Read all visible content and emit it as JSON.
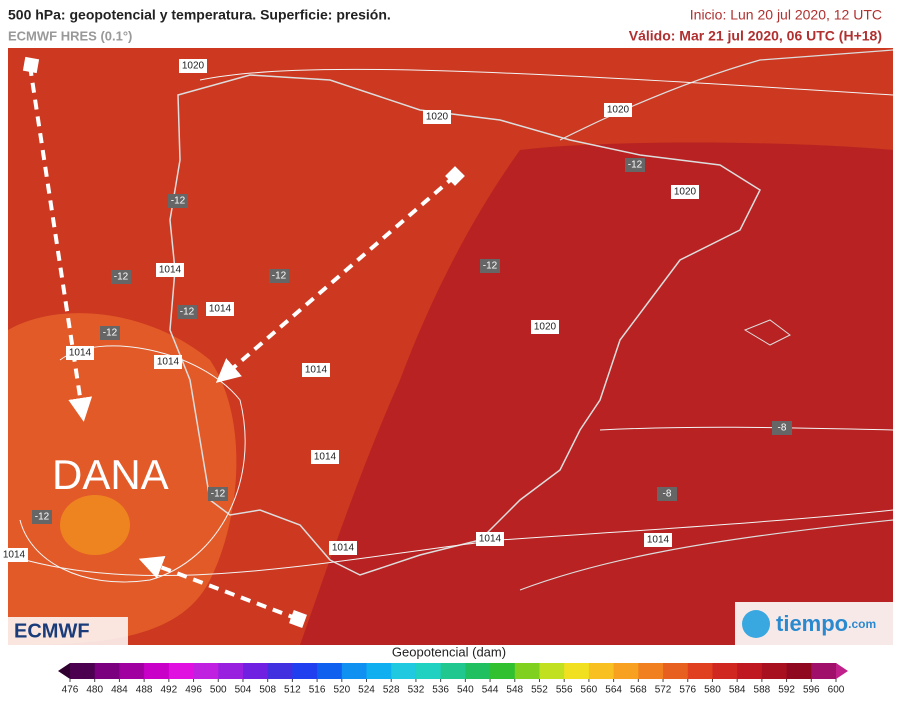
{
  "header": {
    "title": "500 hPa: geopotencial y temperatura. Superficie: presión.",
    "model": "ECMWF HRES (0.1°)",
    "init": "Inicio: Lun 20 jul 2020, 12 UTC",
    "valid": "Válido: Mar 21 jul 2020, 06 UTC (H+18)"
  },
  "map": {
    "annotation": "DANA",
    "isobar_labels": [
      "1020",
      "1020",
      "1020",
      "1020",
      "1020",
      "1014",
      "1014",
      "1014",
      "1014",
      "1014",
      "1014",
      "1014",
      "1014",
      "1014",
      "1014"
    ],
    "temperature_labels": [
      "-12",
      "-12",
      "-12",
      "-12",
      "-12",
      "-12",
      "-12",
      "-12",
      "-12",
      "-8",
      "-8"
    ]
  },
  "legend": {
    "title": "Geopotencial (dam)",
    "ticks": [
      476,
      480,
      484,
      488,
      492,
      496,
      500,
      504,
      508,
      512,
      516,
      520,
      524,
      528,
      532,
      536,
      540,
      544,
      548,
      552,
      556,
      560,
      564,
      568,
      572,
      576,
      580,
      584,
      588,
      592,
      596,
      600
    ],
    "colors": [
      "#4b0050",
      "#7a0080",
      "#a000a0",
      "#c800c8",
      "#e010e0",
      "#c020e0",
      "#9a20e0",
      "#7020e0",
      "#4030e0",
      "#2040f0",
      "#1060f0",
      "#1090f0",
      "#10b0f0",
      "#20c8e0",
      "#20d0c0",
      "#20c890",
      "#20c060",
      "#30c030",
      "#80d020",
      "#c0e020",
      "#f0e020",
      "#f8c020",
      "#f8a020",
      "#f08020",
      "#e86020",
      "#e04020",
      "#d02820",
      "#c01820",
      "#a81020",
      "#900820",
      "#a0106a"
    ],
    "low_color": "#300030",
    "high_color": "#c0208a"
  },
  "logos": {
    "left": "ECMWF",
    "right": "tiempo",
    "right_suffix": ".com"
  }
}
